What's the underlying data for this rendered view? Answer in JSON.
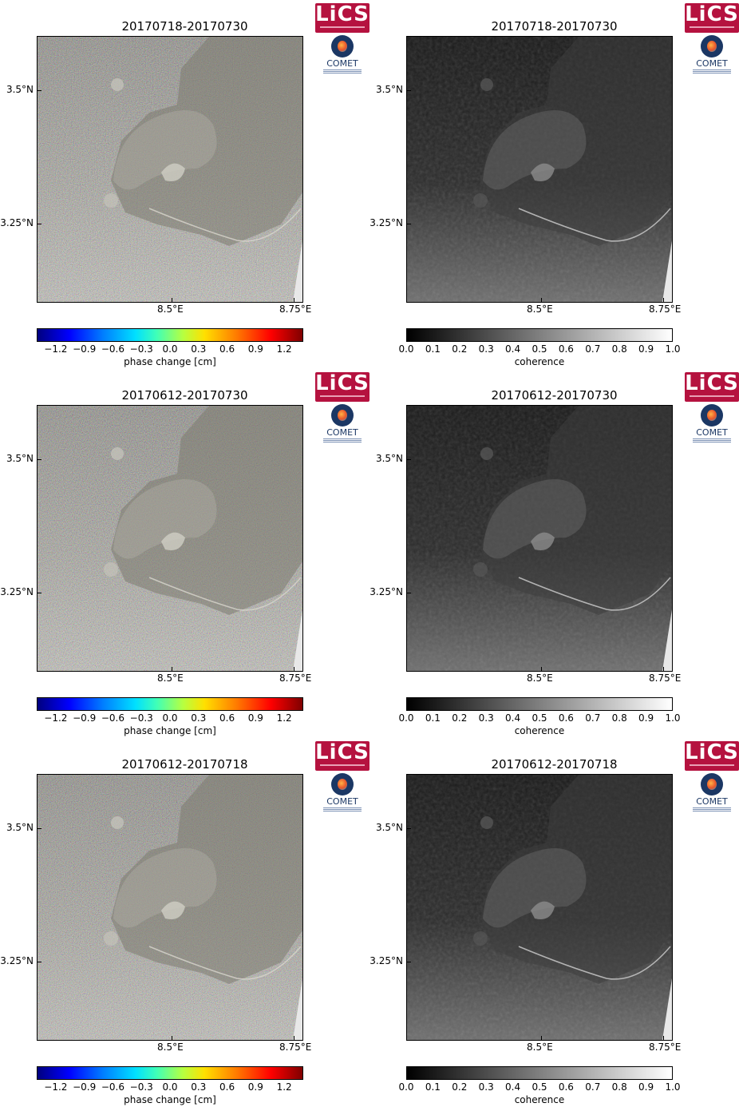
{
  "logos": {
    "lics": "LiCS",
    "comet": "COMET"
  },
  "axes": {
    "yticks": [
      "3.5°N",
      "3.25°N"
    ],
    "xticks": [
      "8.5°E",
      "8.75°E"
    ]
  },
  "colorbars": {
    "phase": {
      "ticks": [
        "−1.2",
        "−0.9",
        "−0.6",
        "−0.3",
        "0.0",
        "0.3",
        "0.6",
        "0.9",
        "1.2"
      ],
      "label": "phase change [cm]"
    },
    "coherence": {
      "ticks": [
        "0.0",
        "0.1",
        "0.2",
        "0.3",
        "0.4",
        "0.5",
        "0.6",
        "0.7",
        "0.8",
        "0.9",
        "1.0"
      ],
      "label": "coherence"
    }
  },
  "panels": [
    {
      "title": "20170718-20170730",
      "type": "phase"
    },
    {
      "title": "20170718-20170730",
      "type": "coherence"
    },
    {
      "title": "20170612-20170730",
      "type": "phase"
    },
    {
      "title": "20170612-20170730",
      "type": "coherence"
    },
    {
      "title": "20170612-20170718",
      "type": "phase"
    },
    {
      "title": "20170612-20170718",
      "type": "coherence"
    }
  ],
  "chart_data": [
    {
      "type": "heatmap",
      "title": "20170718-20170730",
      "colorbar_label": "phase change [cm]",
      "clim": [
        -1.4,
        1.4
      ],
      "xticks": [
        "8.5°E",
        "8.75°E"
      ],
      "yticks": [
        "3.5°N",
        "3.25°N"
      ]
    },
    {
      "type": "heatmap",
      "title": "20170718-20170730",
      "colorbar_label": "coherence",
      "clim": [
        0.0,
        1.0
      ],
      "xticks": [
        "8.5°E",
        "8.75°E"
      ],
      "yticks": [
        "3.5°N",
        "3.25°N"
      ]
    },
    {
      "type": "heatmap",
      "title": "20170612-20170730",
      "colorbar_label": "phase change [cm]",
      "clim": [
        -1.4,
        1.4
      ],
      "xticks": [
        "8.5°E",
        "8.75°E"
      ],
      "yticks": [
        "3.5°N",
        "3.25°N"
      ]
    },
    {
      "type": "heatmap",
      "title": "20170612-20170730",
      "colorbar_label": "coherence",
      "clim": [
        0.0,
        1.0
      ],
      "xticks": [
        "8.5°E",
        "8.75°E"
      ],
      "yticks": [
        "3.5°N",
        "3.25°N"
      ]
    },
    {
      "type": "heatmap",
      "title": "20170612-20170718",
      "colorbar_label": "phase change [cm]",
      "clim": [
        -1.4,
        1.4
      ],
      "xticks": [
        "8.5°E",
        "8.75°E"
      ],
      "yticks": [
        "3.5°N",
        "3.25°N"
      ]
    },
    {
      "type": "heatmap",
      "title": "20170612-20170718",
      "colorbar_label": "coherence",
      "clim": [
        0.0,
        1.0
      ],
      "xticks": [
        "8.5°E",
        "8.75°E"
      ],
      "yticks": [
        "3.5°N",
        "3.25°N"
      ]
    }
  ]
}
